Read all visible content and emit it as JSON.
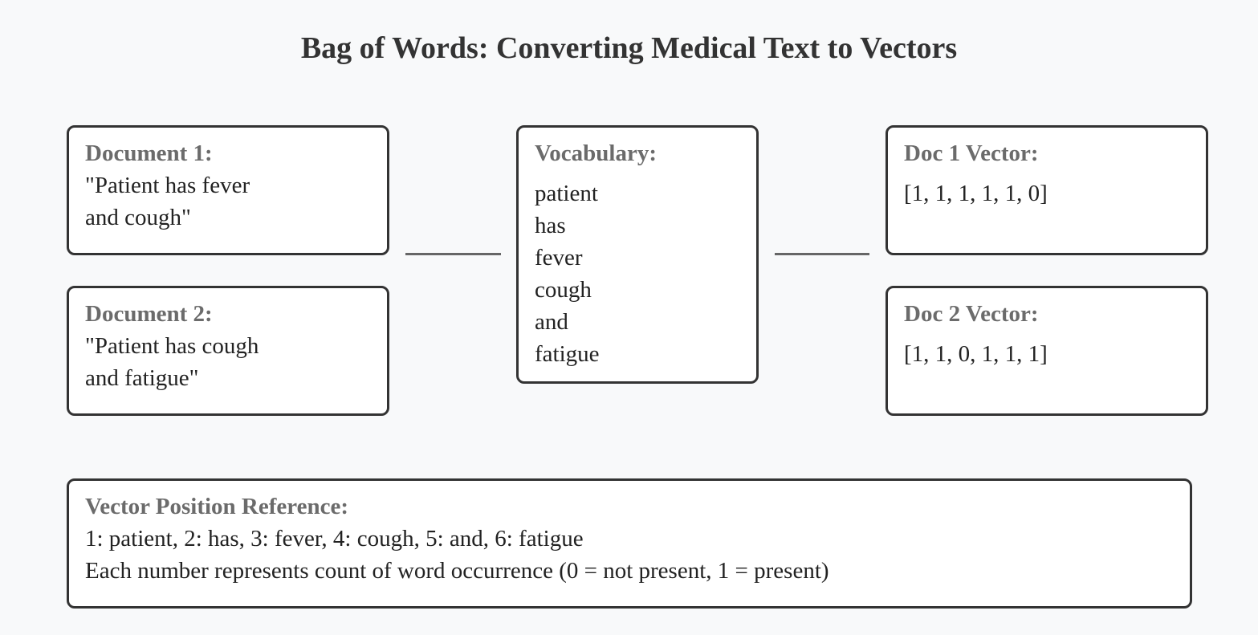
{
  "title": "Bag of Words: Converting Medical Text to Vectors",
  "documents": [
    {
      "heading": "Document 1:",
      "text_lines": [
        "\"Patient has fever",
        "and cough\""
      ]
    },
    {
      "heading": "Document 2:",
      "text_lines": [
        "\"Patient has cough",
        "and fatigue\""
      ]
    }
  ],
  "vocabulary": {
    "heading": "Vocabulary:",
    "words": [
      "patient",
      "has",
      "fever",
      "cough",
      "and",
      "fatigue"
    ]
  },
  "vectors": [
    {
      "heading": "Doc 1 Vector:",
      "value": "[1, 1, 1, 1, 1, 0]"
    },
    {
      "heading": "Doc 2 Vector:",
      "value": "[1, 1, 0, 1, 1, 1]"
    }
  ],
  "reference": {
    "heading": "Vector Position Reference:",
    "positions": "1: patient, 2: has, 3: fever, 4: cough, 5: and, 6: fatigue",
    "explanation": "Each number represents count of word occurrence (0 = not present, 1 = present)"
  }
}
